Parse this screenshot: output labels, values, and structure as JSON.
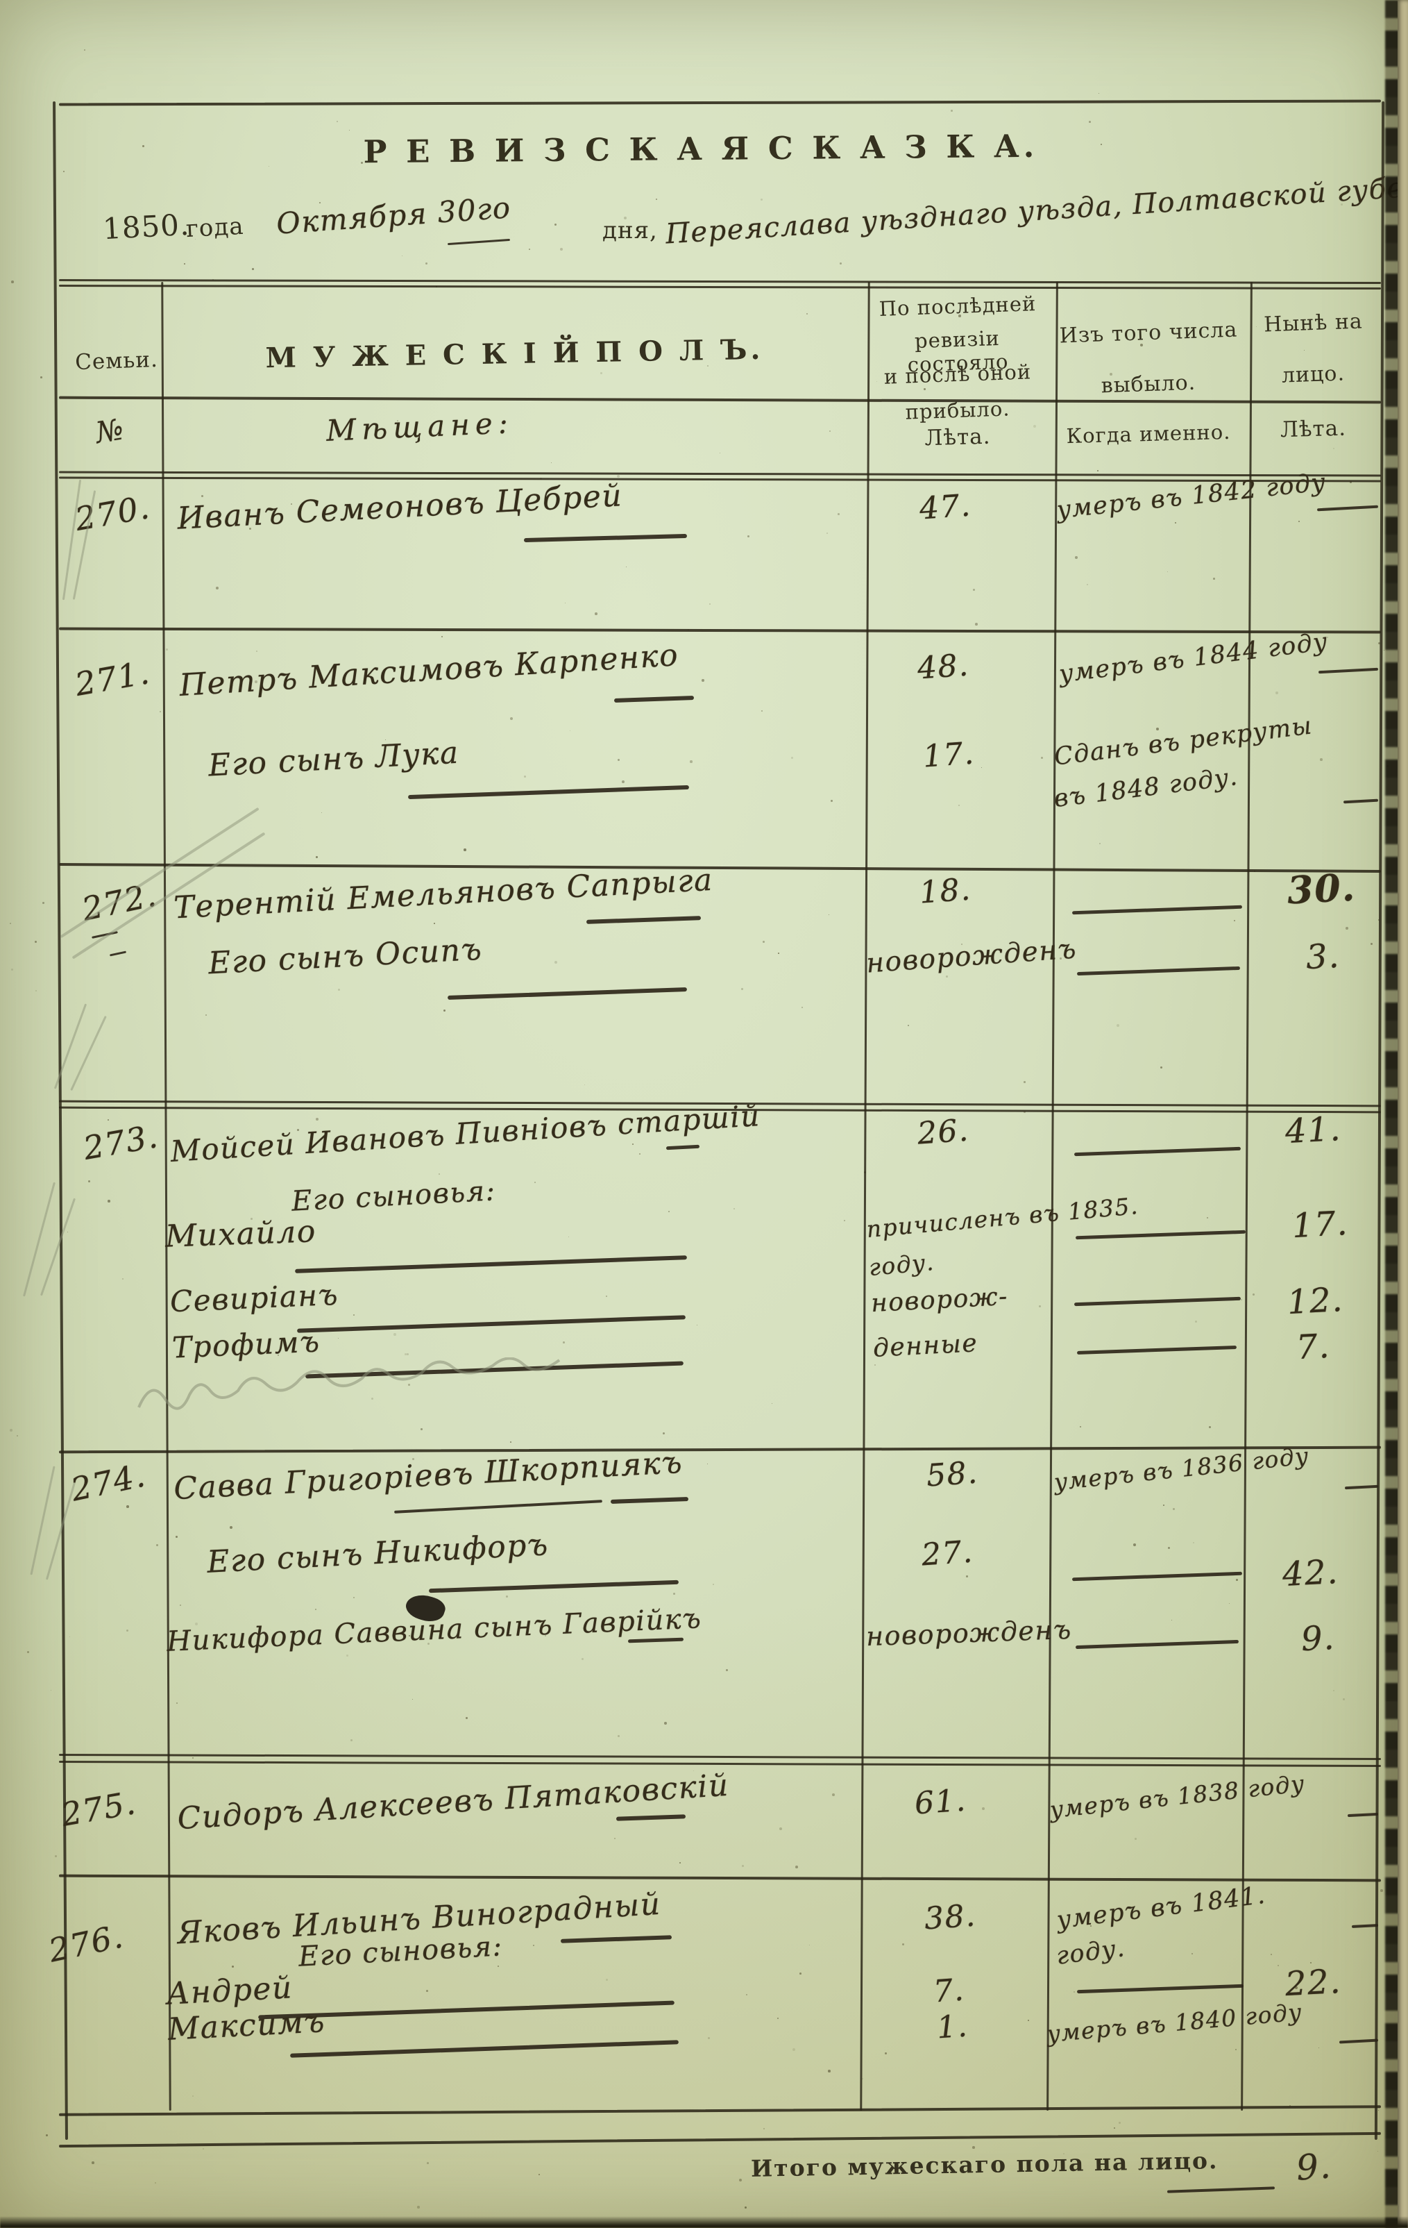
{
  "document": {
    "title": "Р Е В И З С К А Я   С К А З К А.",
    "date_line": {
      "year": "1850.",
      "year_word": "года",
      "month_day": "Октября 30го",
      "day_word": "дня,",
      "place": "Переяслава уѣзднаго уѣзда, Полтавской губерніи"
    },
    "footer": {
      "label": "Итого  мужескаго  пола  на  лицо.",
      "value": "9."
    }
  },
  "table": {
    "header": {
      "family": "Семьи.",
      "male_sex": "М У Ж Е С К І Й   П О Л Ъ.",
      "revision_l1": "По послѣдней",
      "revision_l2": "ревизіи состояло",
      "revision_l3": "и послѣ оной",
      "revision_l4": "прибыло.",
      "departed_l1": "Изъ того числа",
      "departed_l2": "выбыло.",
      "present_l1": "Нынѣ на",
      "present_l2": "лицо.",
      "sub_no": "№",
      "sub_estate": "Мѣщане:",
      "sub_years_left": "Лѣта.",
      "sub_when": "Когда именно.",
      "sub_years_right": "Лѣта."
    },
    "families": [
      {
        "no": "270.",
        "entries": [
          {
            "name": "Иванъ Семеоновъ Цебрей",
            "years": "47.",
            "when": "умеръ въ 1842 году"
          }
        ]
      },
      {
        "no": "271.",
        "entries": [
          {
            "name": "Петръ Максимовъ Карпенко",
            "years": "48.",
            "when": "умеръ въ 1844 году"
          },
          {
            "name": "Его сынъ Лука",
            "years": "17.",
            "when_l1": "Сданъ въ рекруты",
            "when_l2": "въ 1848 году."
          }
        ]
      },
      {
        "no": "272.",
        "entries": [
          {
            "name": "Терентій Емельяновъ Сапрыга",
            "years": "18.",
            "now": "30."
          },
          {
            "name": "Его сынъ Осипъ",
            "years": "новорожденъ",
            "now": "3."
          }
        ]
      },
      {
        "no": "273.",
        "entries": [
          {
            "name": "Мойсей Ивановъ Пивніовъ старшій",
            "years": "26.",
            "now": "41."
          },
          {
            "label": "Его сыновья:"
          },
          {
            "name": "Михайло",
            "years_l1": "причисленъ въ 1835.",
            "years_l2": "году.",
            "now": "17."
          },
          {
            "name": "Севиріанъ",
            "years": "новорож-",
            "now": "12."
          },
          {
            "name": "Трофимъ",
            "years": "денные",
            "now": "7."
          }
        ]
      },
      {
        "no": "274.",
        "entries": [
          {
            "name": "Савва Григоріевъ Шкорпиякъ",
            "years": "58.",
            "when": "умеръ въ 1836 году"
          },
          {
            "name": "Его сынъ Никифоръ",
            "years": "27.",
            "now": "42."
          },
          {
            "name": "Никифора Саввина сынъ Гаврійкъ",
            "years": "новорожденъ",
            "now": "9."
          }
        ]
      },
      {
        "no": "275.",
        "entries": [
          {
            "name": "Сидоръ Алексеевъ Пятаковскій",
            "years": "61.",
            "when": "умеръ въ 1838 году"
          }
        ]
      },
      {
        "no": "276.",
        "entries": [
          {
            "name": "Яковъ Ильинъ Виноградный",
            "years": "38.",
            "when_l1": "умеръ въ 1841.",
            "when_l2": "году."
          },
          {
            "label": "Его сыновья:"
          },
          {
            "name": "Андрей",
            "years": "7.",
            "now": "22."
          },
          {
            "name": "Максимъ",
            "years": "1.",
            "when": "умеръ въ 1840 году"
          }
        ]
      }
    ]
  }
}
